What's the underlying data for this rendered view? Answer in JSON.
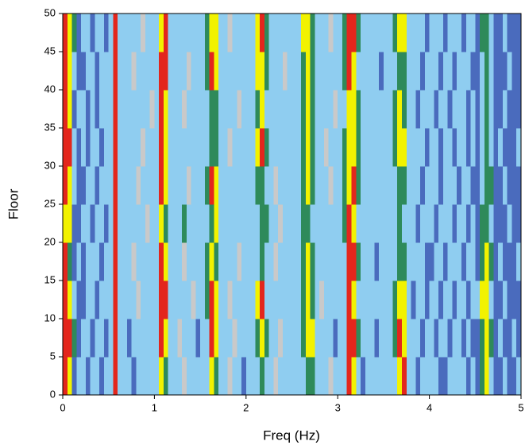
{
  "chart_data": {
    "type": "heatmap",
    "x_label": "Freq (Hz)",
    "y_label": "Floor",
    "xlim": [
      0,
      5
    ],
    "ylim": [
      0,
      50
    ],
    "xticks": [
      0,
      1,
      2,
      3,
      4,
      5
    ],
    "yticks": [
      0,
      5,
      10,
      15,
      20,
      25,
      30,
      35,
      40,
      45,
      50
    ],
    "colors": [
      "#c9c9c9",
      "#4a6bbd",
      "#8fcdf0",
      "#2e8a5a",
      "#f2f200",
      "#e3261c"
    ],
    "x": [
      0.025,
      0.075,
      0.125,
      0.175,
      0.225,
      0.275,
      0.325,
      0.375,
      0.425,
      0.475,
      0.525,
      0.575,
      0.625,
      0.675,
      0.725,
      0.775,
      0.825,
      0.875,
      0.925,
      0.975,
      1.025,
      1.075,
      1.125,
      1.175,
      1.225,
      1.275,
      1.325,
      1.375,
      1.425,
      1.475,
      1.525,
      1.575,
      1.625,
      1.675,
      1.725,
      1.775,
      1.825,
      1.875,
      1.925,
      1.975,
      2.025,
      2.075,
      2.125,
      2.175,
      2.225,
      2.275,
      2.325,
      2.375,
      2.425,
      2.475,
      2.525,
      2.575,
      2.625,
      2.675,
      2.725,
      2.775,
      2.825,
      2.875,
      2.925,
      2.975,
      3.025,
      3.075,
      3.125,
      3.175,
      3.225,
      3.275,
      3.325,
      3.375,
      3.425,
      3.475,
      3.525,
      3.575,
      3.625,
      3.675,
      3.725,
      3.775,
      3.825,
      3.875,
      3.925,
      3.975,
      4.025,
      4.075,
      4.125,
      4.175,
      4.225,
      4.275,
      4.325,
      4.375,
      4.425,
      4.475,
      4.525,
      4.575,
      4.625,
      4.675,
      4.725,
      4.775,
      4.825,
      4.875,
      4.925,
      4.975
    ],
    "y": [
      2.5,
      7.5,
      12.5,
      17.5,
      22.5,
      27.5,
      32.5,
      37.5,
      42.5,
      47.5
    ],
    "z": [
      [
        5,
        4,
        1,
        2,
        2,
        1,
        2,
        2,
        1,
        2,
        2,
        5,
        2,
        2,
        2,
        1,
        2,
        2,
        2,
        2,
        2,
        4,
        3,
        2,
        2,
        2,
        0,
        2,
        2,
        2,
        2,
        2,
        4,
        3,
        2,
        2,
        0,
        2,
        2,
        1,
        2,
        2,
        2,
        3,
        2,
        2,
        0,
        2,
        2,
        2,
        2,
        2,
        2,
        3,
        3,
        2,
        2,
        2,
        0,
        2,
        2,
        2,
        5,
        4,
        2,
        1,
        2,
        2,
        2,
        2,
        2,
        2,
        2,
        4,
        5,
        2,
        2,
        1,
        2,
        2,
        2,
        2,
        1,
        1,
        2,
        2,
        2,
        2,
        1,
        2,
        1,
        3,
        4,
        2,
        1,
        1,
        2,
        1,
        1,
        2
      ],
      [
        5,
        5,
        3,
        1,
        2,
        2,
        1,
        2,
        2,
        1,
        2,
        5,
        2,
        2,
        1,
        2,
        2,
        2,
        2,
        2,
        2,
        5,
        4,
        2,
        2,
        0,
        2,
        2,
        2,
        1,
        2,
        2,
        5,
        4,
        2,
        2,
        2,
        0,
        2,
        2,
        2,
        2,
        3,
        4,
        3,
        2,
        2,
        0,
        2,
        2,
        2,
        2,
        3,
        4,
        4,
        2,
        2,
        2,
        2,
        1,
        2,
        2,
        5,
        5,
        3,
        2,
        2,
        2,
        1,
        2,
        2,
        2,
        3,
        5,
        4,
        2,
        2,
        2,
        1,
        2,
        2,
        1,
        2,
        2,
        1,
        2,
        2,
        1,
        2,
        1,
        1,
        3,
        4,
        3,
        1,
        2,
        1,
        1,
        2,
        1
      ],
      [
        5,
        4,
        2,
        1,
        1,
        2,
        2,
        1,
        2,
        2,
        2,
        5,
        2,
        2,
        2,
        2,
        0,
        2,
        2,
        2,
        2,
        5,
        5,
        2,
        2,
        2,
        2,
        2,
        0,
        2,
        2,
        3,
        5,
        4,
        2,
        2,
        0,
        2,
        2,
        2,
        2,
        2,
        4,
        5,
        2,
        2,
        2,
        2,
        2,
        2,
        2,
        2,
        3,
        4,
        3,
        2,
        0,
        2,
        2,
        2,
        2,
        2,
        5,
        4,
        2,
        2,
        2,
        2,
        2,
        2,
        2,
        2,
        3,
        4,
        4,
        2,
        1,
        2,
        2,
        1,
        2,
        2,
        1,
        2,
        2,
        1,
        2,
        2,
        1,
        2,
        2,
        4,
        4,
        2,
        1,
        1,
        2,
        1,
        1,
        1
      ],
      [
        5,
        3,
        1,
        2,
        1,
        2,
        2,
        2,
        1,
        2,
        2,
        5,
        2,
        2,
        2,
        0,
        2,
        2,
        2,
        2,
        2,
        5,
        4,
        2,
        2,
        2,
        0,
        2,
        2,
        2,
        2,
        3,
        4,
        3,
        2,
        2,
        2,
        2,
        0,
        2,
        2,
        2,
        2,
        3,
        2,
        2,
        0,
        2,
        2,
        2,
        2,
        2,
        3,
        4,
        3,
        2,
        2,
        2,
        2,
        2,
        2,
        2,
        5,
        5,
        3,
        2,
        2,
        2,
        1,
        2,
        2,
        2,
        2,
        3,
        3,
        2,
        2,
        2,
        2,
        1,
        1,
        2,
        2,
        1,
        2,
        2,
        2,
        1,
        2,
        2,
        1,
        3,
        4,
        3,
        1,
        2,
        1,
        1,
        1,
        2
      ],
      [
        4,
        4,
        1,
        1,
        2,
        2,
        1,
        2,
        2,
        1,
        2,
        5,
        2,
        2,
        2,
        2,
        2,
        2,
        0,
        2,
        2,
        4,
        3,
        2,
        2,
        2,
        3,
        2,
        2,
        2,
        2,
        2,
        3,
        4,
        2,
        2,
        2,
        2,
        2,
        2,
        2,
        2,
        2,
        3,
        3,
        2,
        2,
        0,
        2,
        2,
        2,
        2,
        3,
        3,
        2,
        2,
        2,
        2,
        2,
        2,
        2,
        3,
        5,
        4,
        2,
        2,
        2,
        2,
        2,
        2,
        2,
        2,
        2,
        3,
        2,
        2,
        2,
        1,
        2,
        2,
        2,
        1,
        2,
        2,
        2,
        1,
        2,
        2,
        1,
        2,
        1,
        3,
        3,
        2,
        1,
        1,
        1,
        2,
        1,
        1
      ],
      [
        5,
        4,
        2,
        1,
        1,
        2,
        2,
        1,
        2,
        2,
        2,
        5,
        2,
        2,
        2,
        2,
        0,
        2,
        2,
        2,
        2,
        5,
        4,
        2,
        2,
        2,
        2,
        0,
        2,
        2,
        2,
        3,
        5,
        4,
        2,
        2,
        2,
        2,
        2,
        2,
        2,
        2,
        3,
        3,
        2,
        2,
        0,
        2,
        2,
        2,
        2,
        2,
        3,
        4,
        3,
        2,
        2,
        2,
        0,
        2,
        2,
        3,
        4,
        5,
        3,
        2,
        2,
        2,
        2,
        2,
        2,
        2,
        2,
        3,
        3,
        2,
        2,
        2,
        1,
        2,
        2,
        2,
        1,
        2,
        2,
        2,
        1,
        2,
        2,
        1,
        1,
        2,
        3,
        3,
        1,
        1,
        2,
        1,
        1,
        1
      ],
      [
        5,
        5,
        2,
        1,
        2,
        1,
        2,
        2,
        1,
        2,
        2,
        5,
        2,
        2,
        2,
        2,
        2,
        0,
        2,
        2,
        2,
        5,
        4,
        2,
        2,
        2,
        2,
        2,
        2,
        2,
        2,
        2,
        3,
        3,
        2,
        2,
        0,
        2,
        2,
        2,
        2,
        2,
        4,
        5,
        3,
        2,
        2,
        2,
        2,
        2,
        2,
        2,
        3,
        4,
        3,
        2,
        2,
        0,
        2,
        2,
        2,
        3,
        4,
        4,
        3,
        2,
        2,
        2,
        2,
        2,
        2,
        2,
        3,
        4,
        4,
        2,
        2,
        2,
        2,
        1,
        2,
        2,
        1,
        2,
        2,
        1,
        2,
        2,
        1,
        2,
        1,
        2,
        3,
        2,
        1,
        2,
        1,
        1,
        1,
        2
      ],
      [
        5,
        4,
        1,
        2,
        2,
        1,
        2,
        1,
        2,
        2,
        2,
        5,
        2,
        2,
        2,
        2,
        2,
        2,
        2,
        0,
        2,
        5,
        4,
        2,
        2,
        2,
        0,
        2,
        2,
        2,
        2,
        2,
        3,
        3,
        2,
        2,
        2,
        2,
        0,
        2,
        2,
        2,
        3,
        4,
        2,
        2,
        2,
        2,
        2,
        2,
        2,
        2,
        3,
        4,
        3,
        2,
        2,
        2,
        2,
        0,
        2,
        2,
        4,
        4,
        3,
        2,
        2,
        2,
        2,
        2,
        2,
        2,
        3,
        4,
        3,
        2,
        2,
        1,
        2,
        2,
        2,
        1,
        2,
        2,
        1,
        2,
        2,
        2,
        1,
        2,
        1,
        2,
        3,
        2,
        1,
        1,
        2,
        1,
        1,
        1
      ],
      [
        5,
        4,
        2,
        1,
        1,
        2,
        2,
        1,
        2,
        2,
        2,
        5,
        2,
        2,
        2,
        0,
        2,
        2,
        2,
        2,
        2,
        5,
        5,
        2,
        2,
        2,
        2,
        0,
        2,
        2,
        2,
        3,
        5,
        4,
        2,
        2,
        2,
        2,
        2,
        2,
        2,
        2,
        4,
        4,
        3,
        2,
        2,
        2,
        0,
        2,
        2,
        2,
        3,
        4,
        3,
        2,
        2,
        2,
        2,
        2,
        2,
        3,
        5,
        4,
        2,
        2,
        2,
        2,
        2,
        1,
        2,
        2,
        2,
        3,
        3,
        2,
        2,
        2,
        1,
        2,
        2,
        2,
        1,
        2,
        2,
        1,
        2,
        2,
        2,
        1,
        1,
        2,
        3,
        2,
        1,
        1,
        1,
        2,
        1,
        1
      ],
      [
        5,
        4,
        3,
        1,
        2,
        2,
        1,
        2,
        2,
        1,
        2,
        5,
        2,
        2,
        2,
        2,
        2,
        0,
        2,
        2,
        2,
        4,
        5,
        2,
        2,
        2,
        2,
        2,
        2,
        2,
        2,
        3,
        4,
        4,
        2,
        2,
        0,
        2,
        2,
        2,
        2,
        2,
        4,
        5,
        3,
        2,
        2,
        2,
        2,
        2,
        2,
        2,
        4,
        4,
        3,
        2,
        2,
        2,
        0,
        2,
        2,
        3,
        5,
        5,
        3,
        2,
        2,
        2,
        2,
        2,
        2,
        2,
        3,
        4,
        4,
        2,
        2,
        2,
        2,
        1,
        2,
        2,
        2,
        1,
        2,
        2,
        2,
        1,
        2,
        2,
        1,
        3,
        3,
        2,
        1,
        1,
        2,
        1,
        1,
        1
      ]
    ]
  }
}
